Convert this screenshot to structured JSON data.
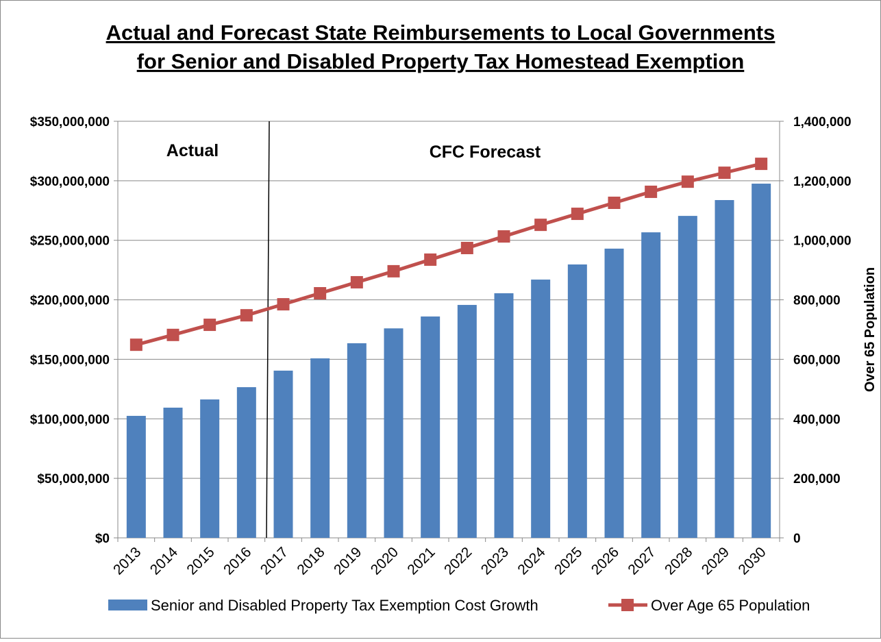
{
  "chart_data": {
    "type": "bar",
    "title": [
      "Actual and Forecast State Reimbursements to Local Governments",
      "for Senior and Disabled Property Tax Homestead Exemption"
    ],
    "y2label": "Over 65 Population",
    "annotations": [
      "Actual",
      "CFC Forecast"
    ],
    "categories": [
      "2013",
      "2014",
      "2015",
      "2016",
      "2017",
      "2018",
      "2019",
      "2020",
      "2021",
      "2022",
      "2023",
      "2024",
      "2025",
      "2026",
      "2027",
      "2028",
      "2029",
      "2030"
    ],
    "series": [
      {
        "name": "Senior and Disabled Property Tax Exemption Cost Growth",
        "type": "bar",
        "color": "#4f81bd",
        "values": [
          102500000,
          109400000,
          116300000,
          126600000,
          140500000,
          150800000,
          163500000,
          176000000,
          186000000,
          195700000,
          205500000,
          217000000,
          229700000,
          243000000,
          256700000,
          270500000,
          283800000,
          297600000
        ]
      },
      {
        "name": "Over Age 65 Population",
        "type": "line",
        "axis": "y2",
        "color": "#c0504d",
        "values": [
          649000,
          682000,
          716000,
          748000,
          785000,
          822000,
          859000,
          896000,
          935000,
          974000,
          1013000,
          1052000,
          1089000,
          1126000,
          1163000,
          1197000,
          1227000,
          1257000
        ]
      }
    ],
    "ylim": [
      0,
      350000000
    ],
    "yticks": [
      {
        "value": 0,
        "label": "$0"
      },
      {
        "value": 50000000,
        "label": "$50,000,000"
      },
      {
        "value": 100000000,
        "label": "$100,000,000"
      },
      {
        "value": 150000000,
        "label": "$150,000,000"
      },
      {
        "value": 200000000,
        "label": "$200,000,000"
      },
      {
        "value": 250000000,
        "label": "$250,000,000"
      },
      {
        "value": 300000000,
        "label": "$300,000,000"
      },
      {
        "value": 350000000,
        "label": "$350,000,000"
      }
    ],
    "y2lim": [
      0,
      1400000
    ],
    "y2ticks": [
      0,
      {
        "value": 200000,
        "label": "200,000"
      },
      {
        "value": 400000,
        "label": "400,000"
      },
      {
        "value": 600000,
        "label": "600,000"
      },
      {
        "value": 800000,
        "label": "800,000"
      },
      {
        "value": 1000000,
        "label": "1,000,000"
      },
      {
        "value": 1200000,
        "label": "1,200,000"
      },
      {
        "value": 1400000,
        "label": "1,400,000"
      }
    ],
    "grid": true,
    "legend": "bottom"
  }
}
